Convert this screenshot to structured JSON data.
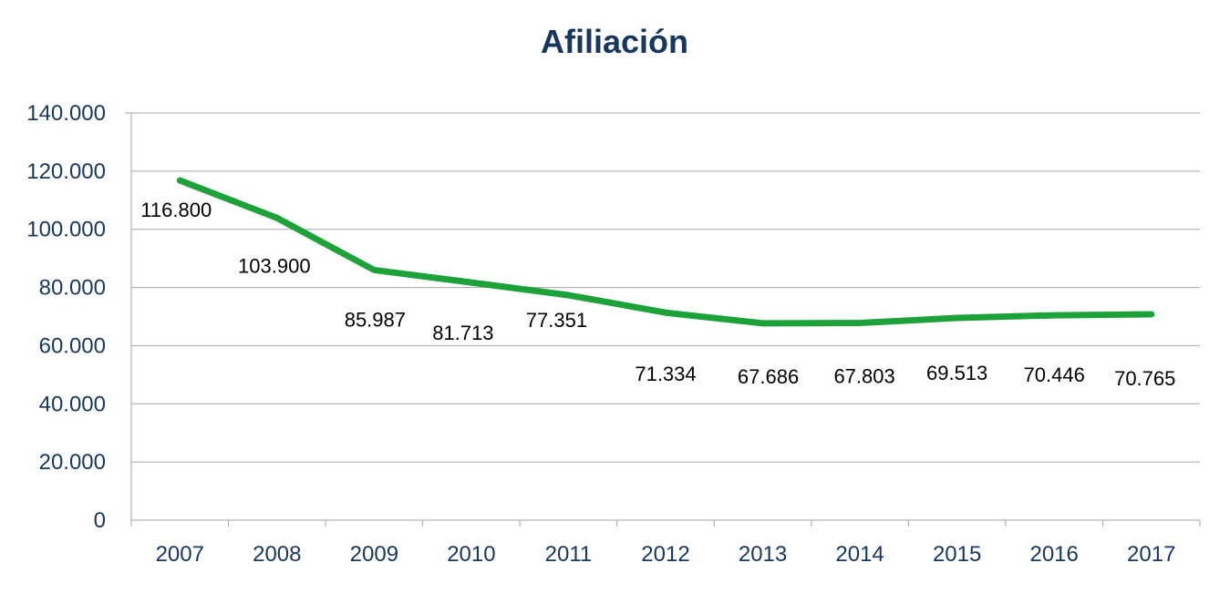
{
  "chart_data": {
    "type": "line",
    "title": "Afiliación",
    "xlabel": "",
    "ylabel": "",
    "categories": [
      "2007",
      "2008",
      "2009",
      "2010",
      "2011",
      "2012",
      "2013",
      "2014",
      "2015",
      "2016",
      "2017"
    ],
    "series": [
      {
        "values": [
          116800,
          103900,
          85987,
          81713,
          77351,
          71334,
          67686,
          67803,
          69513,
          70446,
          70765
        ],
        "data_labels": [
          "116.800",
          "103.900",
          "85.987",
          "81.713",
          "77.351",
          "71.334",
          "67.686",
          "67.803",
          "69.513",
          "70.446",
          "70.765"
        ],
        "color": "#1DA23A"
      }
    ],
    "ylim": [
      0,
      140000
    ],
    "yticks": [
      0,
      20000,
      40000,
      60000,
      80000,
      100000,
      120000,
      140000
    ],
    "ytick_labels": [
      "0",
      "20.000",
      "40.000",
      "60.000",
      "80.000",
      "100.000",
      "120.000",
      "140.000"
    ],
    "grid": true,
    "legend": "none",
    "colors": {
      "title": "#17375E",
      "ticks": "#17375E",
      "grid": "#A6A6A6",
      "labels": "#000000"
    }
  }
}
